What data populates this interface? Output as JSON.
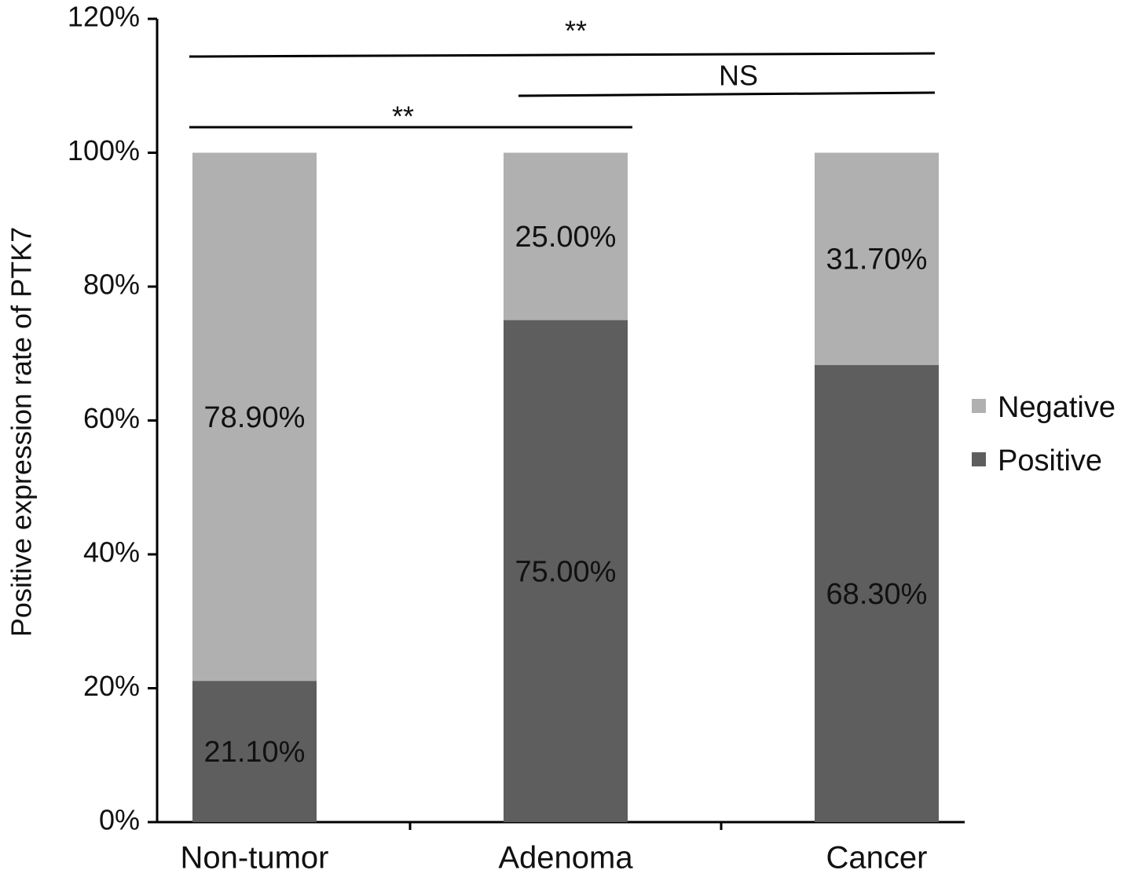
{
  "chart_data": {
    "type": "stacked-bar",
    "y_label": "Positive expression rate of PTK7",
    "categories": [
      "Non-tumor",
      "Adenoma",
      "Cancer"
    ],
    "series": [
      {
        "name": "Positive",
        "color": "#5e5e5e",
        "values": [
          21.1,
          75.0,
          68.3
        ],
        "value_labels": [
          "21.10%",
          "75.00%",
          "68.30%"
        ]
      },
      {
        "name": "Negative",
        "color": "#b0b0b0",
        "values": [
          78.9,
          25.0,
          31.7
        ],
        "value_labels": [
          "78.90%",
          "25.00%",
          "31.70%"
        ]
      }
    ],
    "ylim": [
      0,
      120
    ],
    "yticks": [
      {
        "value": 0,
        "label": "0%"
      },
      {
        "value": 20,
        "label": "20%"
      },
      {
        "value": 40,
        "label": "40%"
      },
      {
        "value": 60,
        "label": "60%"
      },
      {
        "value": 80,
        "label": "80%"
      },
      {
        "value": 100,
        "label": "100%"
      },
      {
        "value": 120,
        "label": "120%"
      }
    ],
    "annotations": [
      "**",
      "NS",
      "**"
    ],
    "legend": "right"
  }
}
